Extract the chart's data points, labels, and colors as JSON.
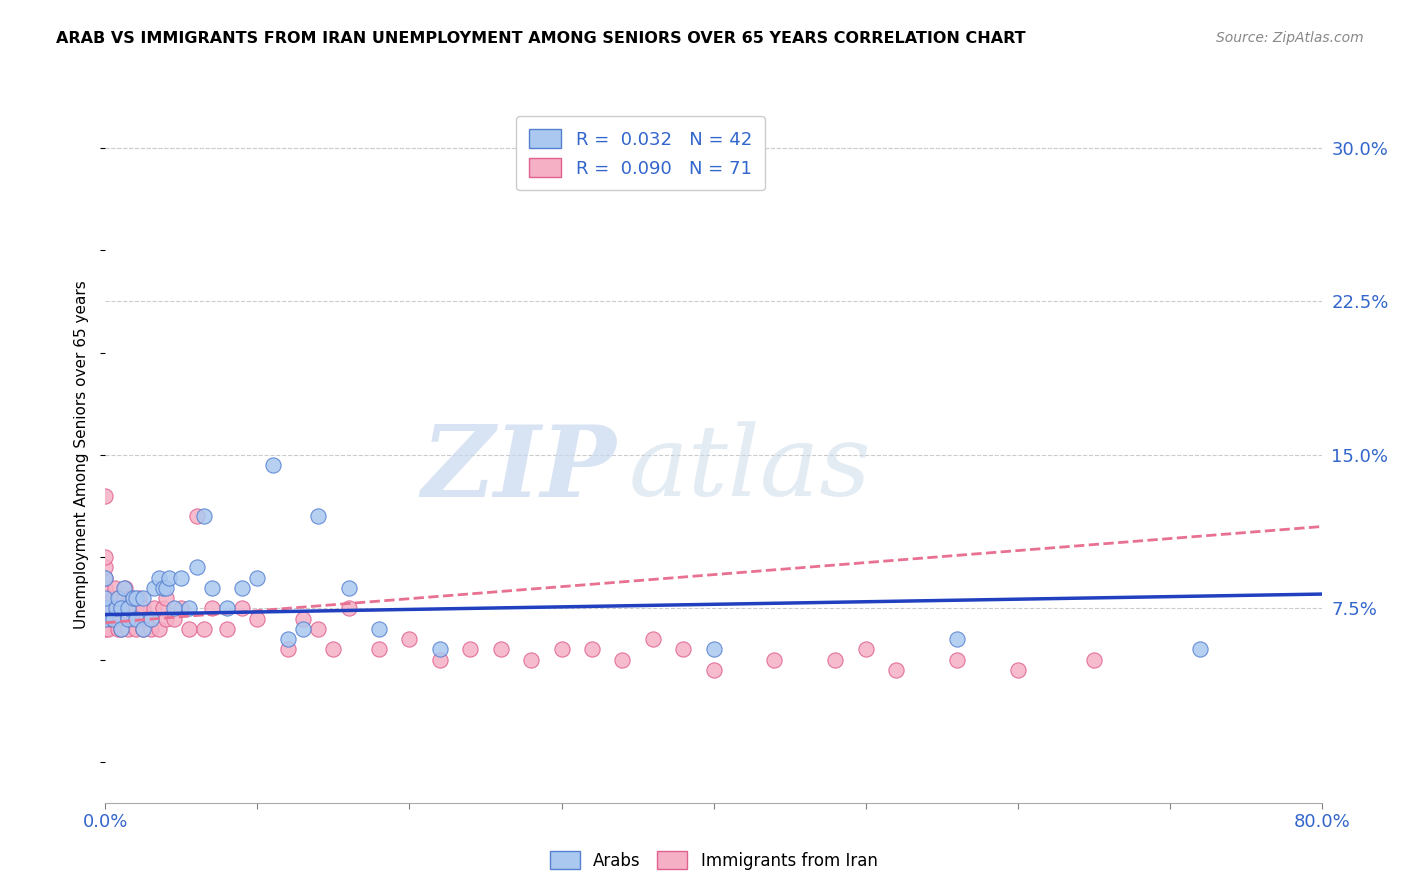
{
  "title": "ARAB VS IMMIGRANTS FROM IRAN UNEMPLOYMENT AMONG SENIORS OVER 65 YEARS CORRELATION CHART",
  "source": "Source: ZipAtlas.com",
  "ylabel": "Unemployment Among Seniors over 65 years",
  "xlim": [
    0.0,
    0.8
  ],
  "ylim": [
    -0.02,
    0.32
  ],
  "yticks_right": [
    0.075,
    0.15,
    0.225,
    0.3
  ],
  "ytick_right_labels": [
    "7.5%",
    "15.0%",
    "22.5%",
    "30.0%"
  ],
  "arab_color": "#aac8f0",
  "iran_color": "#f5b0c5",
  "arab_edge_color": "#5580d0",
  "iran_edge_color": "#e06090",
  "arab_line_color": "#2040c0",
  "iran_line_color": "#e87090",
  "watermark_zip": "ZIP",
  "watermark_atlas": "atlas",
  "arab_scatter_x": [
    0.0,
    0.0,
    0.0,
    0.0,
    0.005,
    0.007,
    0.008,
    0.01,
    0.01,
    0.012,
    0.015,
    0.015,
    0.018,
    0.02,
    0.02,
    0.025,
    0.025,
    0.03,
    0.032,
    0.035,
    0.038,
    0.04,
    0.042,
    0.045,
    0.05,
    0.055,
    0.06,
    0.065,
    0.07,
    0.08,
    0.09,
    0.1,
    0.11,
    0.12,
    0.13,
    0.14,
    0.16,
    0.18,
    0.22,
    0.4,
    0.56,
    0.72
  ],
  "arab_scatter_y": [
    0.07,
    0.075,
    0.08,
    0.09,
    0.07,
    0.075,
    0.08,
    0.065,
    0.075,
    0.085,
    0.07,
    0.075,
    0.08,
    0.07,
    0.08,
    0.065,
    0.08,
    0.07,
    0.085,
    0.09,
    0.085,
    0.085,
    0.09,
    0.075,
    0.09,
    0.075,
    0.095,
    0.12,
    0.085,
    0.075,
    0.085,
    0.09,
    0.145,
    0.06,
    0.065,
    0.12,
    0.085,
    0.065,
    0.055,
    0.055,
    0.06,
    0.055
  ],
  "iran_scatter_x": [
    0.0,
    0.0,
    0.0,
    0.0,
    0.0,
    0.0,
    0.0,
    0.0,
    0.0,
    0.002,
    0.003,
    0.004,
    0.005,
    0.006,
    0.007,
    0.008,
    0.008,
    0.009,
    0.01,
    0.01,
    0.012,
    0.013,
    0.015,
    0.015,
    0.016,
    0.018,
    0.02,
    0.02,
    0.022,
    0.025,
    0.025,
    0.027,
    0.03,
    0.032,
    0.035,
    0.038,
    0.04,
    0.04,
    0.045,
    0.05,
    0.055,
    0.06,
    0.065,
    0.07,
    0.08,
    0.09,
    0.1,
    0.12,
    0.13,
    0.14,
    0.15,
    0.16,
    0.18,
    0.2,
    0.22,
    0.24,
    0.26,
    0.28,
    0.3,
    0.32,
    0.34,
    0.36,
    0.38,
    0.4,
    0.44,
    0.48,
    0.5,
    0.52,
    0.56,
    0.6,
    0.65
  ],
  "iran_scatter_y": [
    0.065,
    0.07,
    0.075,
    0.08,
    0.085,
    0.09,
    0.095,
    0.1,
    0.13,
    0.065,
    0.07,
    0.075,
    0.08,
    0.085,
    0.07,
    0.065,
    0.075,
    0.08,
    0.065,
    0.075,
    0.08,
    0.085,
    0.065,
    0.075,
    0.08,
    0.07,
    0.065,
    0.075,
    0.08,
    0.065,
    0.075,
    0.07,
    0.065,
    0.075,
    0.065,
    0.075,
    0.07,
    0.08,
    0.07,
    0.075,
    0.065,
    0.12,
    0.065,
    0.075,
    0.065,
    0.075,
    0.07,
    0.055,
    0.07,
    0.065,
    0.055,
    0.075,
    0.055,
    0.06,
    0.05,
    0.055,
    0.055,
    0.05,
    0.055,
    0.055,
    0.05,
    0.06,
    0.055,
    0.045,
    0.05,
    0.05,
    0.055,
    0.045,
    0.05,
    0.045,
    0.05
  ],
  "arab_trend_x": [
    0.0,
    0.8
  ],
  "arab_trend_y": [
    0.072,
    0.082
  ],
  "iran_trend_x": [
    0.0,
    0.8
  ],
  "iran_trend_y": [
    0.068,
    0.115
  ]
}
